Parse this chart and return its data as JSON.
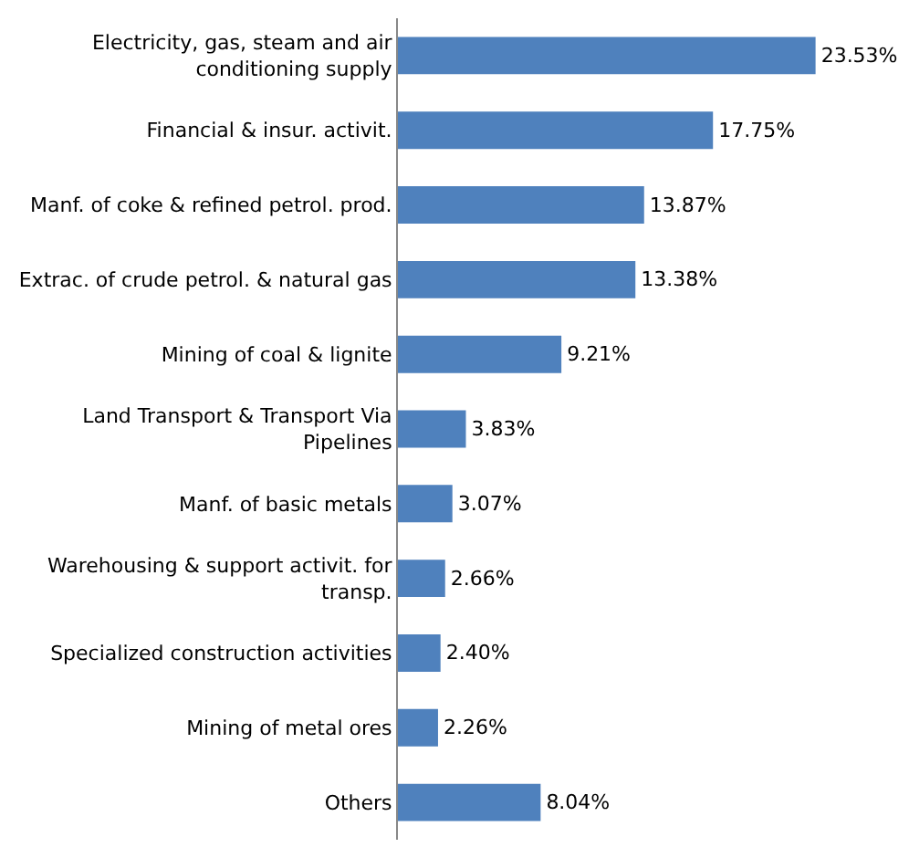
{
  "chart_data": {
    "type": "bar",
    "orientation": "horizontal",
    "categories": [
      "Electricity, gas, steam and air conditioning supply",
      "Financial & insur. activit.",
      "Manf. of coke & refined petrol. prod.",
      "Extrac. of crude petrol. & natural gas",
      "Mining of coal & lignite",
      "Land Transport & Transport Via Pipelines",
      "Manf. of basic metals",
      "Warehousing & support activit. for transp.",
      "Specialized construction activities",
      "Mining of metal ores",
      "Others"
    ],
    "values": [
      23.53,
      17.75,
      13.87,
      13.38,
      9.21,
      3.83,
      3.07,
      2.66,
      2.4,
      2.26,
      8.04
    ],
    "value_labels": [
      "23.53%",
      "17.75%",
      "13.87%",
      "13.38%",
      "9.21%",
      "3.83%",
      "3.07%",
      "2.66%",
      "2.40%",
      "2.26%",
      "8.04%"
    ],
    "color": "#4f81bd"
  }
}
